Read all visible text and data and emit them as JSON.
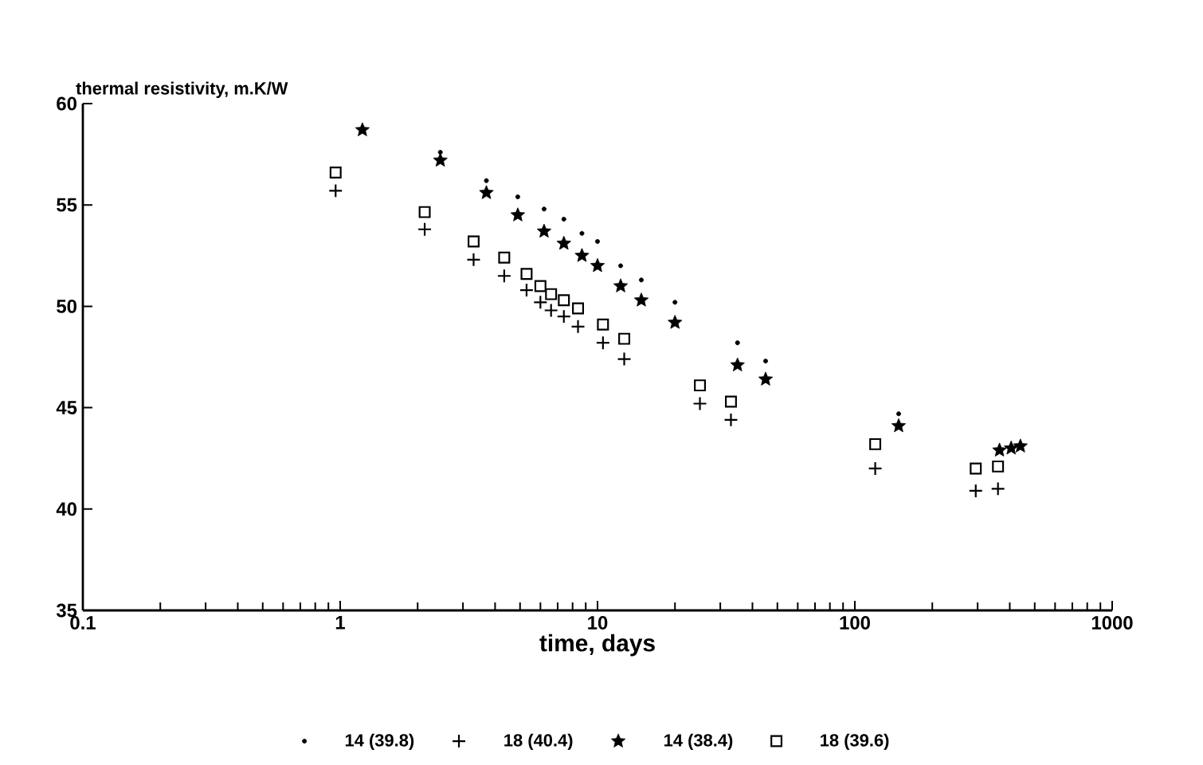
{
  "chart_data": {
    "type": "scatter",
    "ylabel": "thermal resistivity, m.K/W",
    "xlabel": "time, days",
    "log": "x",
    "xlim": [
      0.1,
      1000
    ],
    "ylim": [
      35,
      60
    ],
    "xticks": [
      0.1,
      1,
      10,
      100,
      1000
    ],
    "yticks": [
      35,
      40,
      45,
      50,
      55,
      60
    ],
    "grid": false,
    "legend": "bottom",
    "series": [
      {
        "name": "14 (39.8)",
        "color": "#000000",
        "marker": "circle",
        "x": [
          2.45,
          3.7,
          4.9,
          6.2,
          7.4,
          8.7,
          10,
          12.3,
          14.8,
          20,
          35,
          45,
          148
        ],
        "values": [
          57.6,
          56.2,
          55.4,
          54.8,
          54.3,
          53.6,
          53.2,
          52.0,
          51.3,
          50.2,
          48.2,
          47.3,
          44.7
        ]
      },
      {
        "name": "18 (40.4)",
        "color": "#000000",
        "marker": "cross",
        "x": [
          0.96,
          2.13,
          3.3,
          4.34,
          5.3,
          6.0,
          6.6,
          7.4,
          8.4,
          10.5,
          12.7,
          25,
          33,
          120,
          295,
          360
        ],
        "values": [
          55.7,
          53.8,
          52.3,
          51.5,
          50.8,
          50.2,
          49.8,
          49.5,
          49.0,
          48.2,
          47.4,
          45.2,
          44.4,
          42.0,
          40.9,
          41.0
        ]
      },
      {
        "name": "14 (38.4)",
        "color": "#000000",
        "marker": "star",
        "x": [
          1.22,
          2.45,
          3.7,
          4.9,
          6.2,
          7.4,
          8.7,
          10,
          12.3,
          14.8,
          20,
          35,
          45,
          148,
          365,
          405,
          440
        ],
        "values": [
          58.7,
          57.2,
          55.6,
          54.5,
          53.7,
          53.1,
          52.5,
          52.0,
          51.0,
          50.3,
          49.2,
          47.1,
          46.4,
          44.1,
          42.9,
          43.0,
          43.1
        ]
      },
      {
        "name": "18 (39.6)",
        "color": "#000000",
        "marker": "square",
        "x": [
          0.96,
          2.13,
          3.3,
          4.34,
          5.3,
          6.0,
          6.6,
          7.4,
          8.4,
          10.5,
          12.7,
          25,
          33,
          120,
          295,
          360
        ],
        "values": [
          56.6,
          54.65,
          53.2,
          52.4,
          51.6,
          51.0,
          50.6,
          50.3,
          49.9,
          49.1,
          48.4,
          46.1,
          45.3,
          43.2,
          42.0,
          42.1
        ]
      }
    ]
  }
}
